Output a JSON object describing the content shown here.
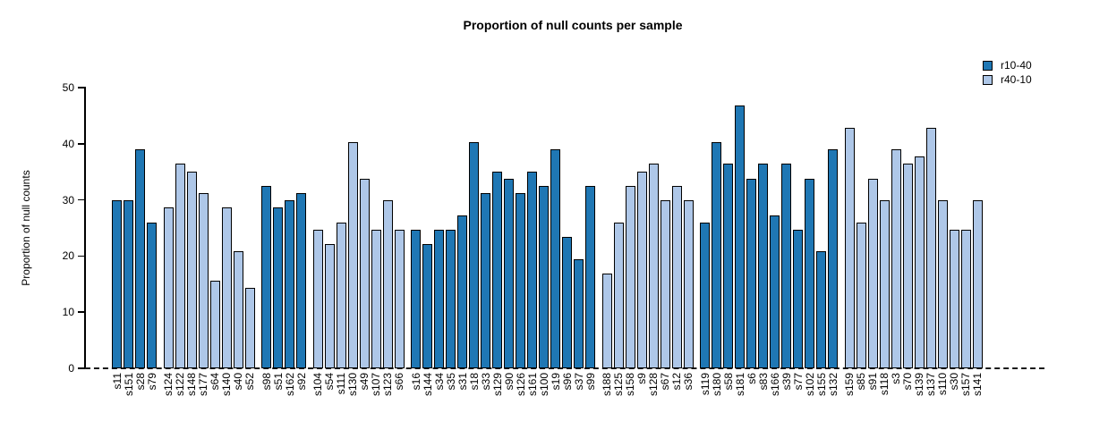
{
  "title": "Proportion of null counts per sample",
  "y_axis": {
    "label": "Proportion of null counts"
  },
  "legend": {
    "items": [
      {
        "label": "r10-40",
        "series": "r10-40"
      },
      {
        "label": "r40-10",
        "series": "r40-10"
      }
    ]
  },
  "colors": {
    "r10-40": "#1f77b4",
    "r40-10": "#aec7e8",
    "axis": "#000000",
    "bar_border": "#000000"
  },
  "chart_data": {
    "type": "bar",
    "title": "Proportion of null counts per sample",
    "xlabel": "",
    "ylabel": "Proportion of null counts",
    "ylim": [
      0,
      50
    ],
    "y_ticks": [
      0,
      10,
      20,
      30,
      40,
      50
    ],
    "grid": false,
    "zero_line": "dashed",
    "legend_position": "top-right",
    "series": [
      {
        "name": "r10-40",
        "color": "#1f77b4"
      },
      {
        "name": "r40-10",
        "color": "#aec7e8"
      }
    ],
    "bars": [
      {
        "label": "s11",
        "value": 29.9,
        "series": "r10-40"
      },
      {
        "label": "s151",
        "value": 29.9,
        "series": "r10-40"
      },
      {
        "label": "s28",
        "value": 39.0,
        "series": "r10-40"
      },
      {
        "label": "s79",
        "value": 26.0,
        "series": "r10-40"
      },
      {
        "label": "s124",
        "value": 28.6,
        "series": "r40-10"
      },
      {
        "label": "s122",
        "value": 36.4,
        "series": "r40-10"
      },
      {
        "label": "s148",
        "value": 35.1,
        "series": "r40-10"
      },
      {
        "label": "s177",
        "value": 31.2,
        "series": "r40-10"
      },
      {
        "label": "s64",
        "value": 15.6,
        "series": "r40-10"
      },
      {
        "label": "s140",
        "value": 28.6,
        "series": "r40-10"
      },
      {
        "label": "s40",
        "value": 20.8,
        "series": "r40-10"
      },
      {
        "label": "s52",
        "value": 14.3,
        "series": "r40-10"
      },
      {
        "label": "s98",
        "value": 32.5,
        "series": "r10-40"
      },
      {
        "label": "s51",
        "value": 28.6,
        "series": "r10-40"
      },
      {
        "label": "s162",
        "value": 29.9,
        "series": "r10-40"
      },
      {
        "label": "s92",
        "value": 31.2,
        "series": "r10-40"
      },
      {
        "label": "s104",
        "value": 24.7,
        "series": "r40-10"
      },
      {
        "label": "s54",
        "value": 22.1,
        "series": "r40-10"
      },
      {
        "label": "s111",
        "value": 26.0,
        "series": "r40-10"
      },
      {
        "label": "s130",
        "value": 40.3,
        "series": "r40-10"
      },
      {
        "label": "s49",
        "value": 33.8,
        "series": "r40-10"
      },
      {
        "label": "s107",
        "value": 24.7,
        "series": "r40-10"
      },
      {
        "label": "s123",
        "value": 29.9,
        "series": "r40-10"
      },
      {
        "label": "s66",
        "value": 24.7,
        "series": "r40-10"
      },
      {
        "label": "s16",
        "value": 24.7,
        "series": "r10-40"
      },
      {
        "label": "s144",
        "value": 22.1,
        "series": "r10-40"
      },
      {
        "label": "s34",
        "value": 24.7,
        "series": "r10-40"
      },
      {
        "label": "s35",
        "value": 24.7,
        "series": "r10-40"
      },
      {
        "label": "s31",
        "value": 27.3,
        "series": "r10-40"
      },
      {
        "label": "s18",
        "value": 40.3,
        "series": "r10-40"
      },
      {
        "label": "s33",
        "value": 31.2,
        "series": "r10-40"
      },
      {
        "label": "s129",
        "value": 35.1,
        "series": "r10-40"
      },
      {
        "label": "s90",
        "value": 33.8,
        "series": "r10-40"
      },
      {
        "label": "s126",
        "value": 31.2,
        "series": "r10-40"
      },
      {
        "label": "s161",
        "value": 35.1,
        "series": "r10-40"
      },
      {
        "label": "s100",
        "value": 32.5,
        "series": "r10-40"
      },
      {
        "label": "s19",
        "value": 39.0,
        "series": "r10-40"
      },
      {
        "label": "s96",
        "value": 23.4,
        "series": "r10-40"
      },
      {
        "label": "s37",
        "value": 19.5,
        "series": "r10-40"
      },
      {
        "label": "s99",
        "value": 32.5,
        "series": "r10-40"
      },
      {
        "label": "s188",
        "value": 16.9,
        "series": "r40-10"
      },
      {
        "label": "s125",
        "value": 26.0,
        "series": "r40-10"
      },
      {
        "label": "s158",
        "value": 32.5,
        "series": "r40-10"
      },
      {
        "label": "s9",
        "value": 35.1,
        "series": "r40-10"
      },
      {
        "label": "s128",
        "value": 36.4,
        "series": "r40-10"
      },
      {
        "label": "s67",
        "value": 29.9,
        "series": "r40-10"
      },
      {
        "label": "s12",
        "value": 32.5,
        "series": "r40-10"
      },
      {
        "label": "s36",
        "value": 29.9,
        "series": "r40-10"
      },
      {
        "label": "s119",
        "value": 26.0,
        "series": "r10-40"
      },
      {
        "label": "s180",
        "value": 40.3,
        "series": "r10-40"
      },
      {
        "label": "s58",
        "value": 36.4,
        "series": "r10-40"
      },
      {
        "label": "s181",
        "value": 46.8,
        "series": "r10-40"
      },
      {
        "label": "s6",
        "value": 33.8,
        "series": "r10-40"
      },
      {
        "label": "s83",
        "value": 36.4,
        "series": "r10-40"
      },
      {
        "label": "s166",
        "value": 27.3,
        "series": "r10-40"
      },
      {
        "label": "s39",
        "value": 36.4,
        "series": "r10-40"
      },
      {
        "label": "s77",
        "value": 24.7,
        "series": "r10-40"
      },
      {
        "label": "s102",
        "value": 33.8,
        "series": "r10-40"
      },
      {
        "label": "s155",
        "value": 20.8,
        "series": "r10-40"
      },
      {
        "label": "s132",
        "value": 39.0,
        "series": "r10-40"
      },
      {
        "label": "s159",
        "value": 42.9,
        "series": "r40-10"
      },
      {
        "label": "s85",
        "value": 26.0,
        "series": "r40-10"
      },
      {
        "label": "s91",
        "value": 33.8,
        "series": "r40-10"
      },
      {
        "label": "s118",
        "value": 29.9,
        "series": "r40-10"
      },
      {
        "label": "s3",
        "value": 39.0,
        "series": "r40-10"
      },
      {
        "label": "s70",
        "value": 36.4,
        "series": "r40-10"
      },
      {
        "label": "s139",
        "value": 37.7,
        "series": "r40-10"
      },
      {
        "label": "s137",
        "value": 42.9,
        "series": "r40-10"
      },
      {
        "label": "s110",
        "value": 29.9,
        "series": "r40-10"
      },
      {
        "label": "s30",
        "value": 24.7,
        "series": "r40-10"
      },
      {
        "label": "s157",
        "value": 24.7,
        "series": "r40-10"
      },
      {
        "label": "s141",
        "value": 29.9,
        "series": "r40-10"
      }
    ]
  }
}
